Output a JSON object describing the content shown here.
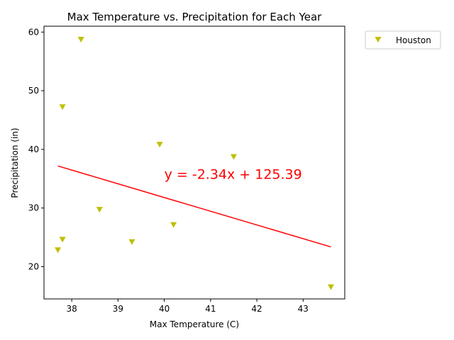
{
  "chart_data": {
    "type": "scatter",
    "title": "Max Temperature vs. Precipitation for Each Year",
    "xlabel": "Max Temperature (C)",
    "ylabel": "Precipitation (in)",
    "xlim": [
      37.4,
      43.9
    ],
    "ylim": [
      14.5,
      61
    ],
    "xticks": [
      38,
      39,
      40,
      41,
      42,
      43
    ],
    "yticks": [
      20,
      30,
      40,
      50,
      60
    ],
    "grid": false,
    "legend_position": "outside top-right",
    "series": [
      {
        "name": "Houston",
        "marker": "triangle-down",
        "color": "#bfbf00",
        "points": [
          {
            "x": 38.2,
            "y": 58.7
          },
          {
            "x": 37.8,
            "y": 47.2
          },
          {
            "x": 39.9,
            "y": 40.8
          },
          {
            "x": 41.5,
            "y": 38.7
          },
          {
            "x": 38.6,
            "y": 29.7
          },
          {
            "x": 40.2,
            "y": 27.1
          },
          {
            "x": 37.8,
            "y": 24.6
          },
          {
            "x": 39.3,
            "y": 24.2
          },
          {
            "x": 37.7,
            "y": 22.8
          },
          {
            "x": 43.6,
            "y": 16.5
          }
        ]
      }
    ],
    "regression": {
      "slope": -2.34,
      "intercept": 125.39,
      "x_range": [
        37.7,
        43.6
      ],
      "color": "#ff0000",
      "equation_label": "y = -2.34x + 125.39",
      "label_at": {
        "x": 40.0,
        "y": 35.0
      }
    }
  }
}
